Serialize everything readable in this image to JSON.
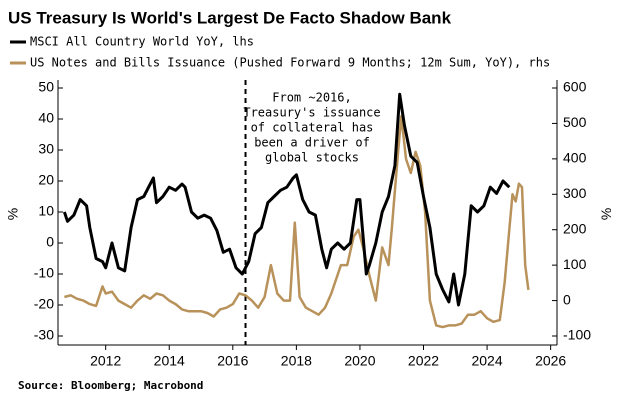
{
  "chart_data": {
    "type": "line",
    "title": "US Treasury Is World's Largest De Facto Shadow Bank",
    "y_label": "%",
    "y2_label": "%",
    "source": "Source: Bloomberg; Macrobond",
    "annotation": [
      "From ~2016,",
      "Treasury's issuance",
      "of collateral has",
      "been a driver of",
      "global stocks"
    ],
    "reference_line_x": 2016.4,
    "xlim": [
      2010.5,
      2026.2
    ],
    "xticks": [
      2012,
      2014,
      2016,
      2018,
      2020,
      2022,
      2024,
      2026
    ],
    "ylim": [
      -30,
      50
    ],
    "yticks": [
      -30,
      -20,
      -10,
      0,
      10,
      20,
      30,
      40,
      50
    ],
    "y2lim": [
      -100,
      600
    ],
    "y2ticks": [
      -100,
      0,
      100,
      200,
      300,
      400,
      500,
      600
    ],
    "series": [
      {
        "name": "MSCI All Country World YoY, lhs",
        "color": "#000000",
        "axis": "y",
        "x": [
          2010.7,
          2010.8,
          2011.0,
          2011.2,
          2011.4,
          2011.5,
          2011.7,
          2011.9,
          2012.0,
          2012.2,
          2012.4,
          2012.6,
          2012.8,
          2013.0,
          2013.2,
          2013.4,
          2013.5,
          2013.6,
          2013.8,
          2014.0,
          2014.2,
          2014.4,
          2014.5,
          2014.7,
          2014.9,
          2015.1,
          2015.3,
          2015.5,
          2015.7,
          2015.9,
          2016.1,
          2016.3,
          2016.5,
          2016.7,
          2016.9,
          2017.1,
          2017.3,
          2017.5,
          2017.7,
          2017.9,
          2018.0,
          2018.2,
          2018.4,
          2018.6,
          2018.8,
          2018.95,
          2019.1,
          2019.3,
          2019.5,
          2019.7,
          2019.9,
          2020.0,
          2020.2,
          2020.3,
          2020.5,
          2020.7,
          2020.9,
          2021.1,
          2021.25,
          2021.4,
          2021.6,
          2021.8,
          2022.0,
          2022.2,
          2022.4,
          2022.6,
          2022.8,
          2022.95,
          2023.1,
          2023.3,
          2023.5,
          2023.7,
          2023.9,
          2024.1,
          2024.3,
          2024.5,
          2024.7
        ],
        "values": [
          10,
          7,
          9,
          14,
          12,
          5,
          -5,
          -6,
          -8,
          0,
          -8,
          -9,
          5,
          14,
          15,
          19,
          21,
          13,
          15,
          18,
          17,
          19,
          18,
          10,
          8,
          9,
          8,
          4,
          -3,
          -2,
          -8,
          -10,
          -6,
          3,
          5,
          13,
          15,
          17,
          18,
          21,
          22,
          14,
          10,
          9,
          -2,
          -8,
          -2,
          0,
          -2,
          0,
          14,
          14,
          -10,
          -7,
          0,
          10,
          15,
          25,
          48,
          38,
          28,
          26,
          15,
          5,
          -10,
          -15,
          -19,
          -10,
          -20,
          -10,
          12,
          10,
          12,
          18,
          16,
          20,
          18
        ]
      },
      {
        "name": "US Notes and Bills Issuance (Pushed Forward 9 Months; 12m Sum, YoY), rhs",
        "color": "#b8925a",
        "axis": "y2",
        "x": [
          2010.7,
          2010.9,
          2011.1,
          2011.3,
          2011.5,
          2011.7,
          2011.9,
          2012.0,
          2012.2,
          2012.4,
          2012.6,
          2012.8,
          2013.0,
          2013.2,
          2013.4,
          2013.6,
          2013.8,
          2014.0,
          2014.2,
          2014.4,
          2014.6,
          2014.8,
          2015.0,
          2015.2,
          2015.4,
          2015.6,
          2015.8,
          2016.0,
          2016.2,
          2016.4,
          2016.6,
          2016.8,
          2017.0,
          2017.2,
          2017.4,
          2017.6,
          2017.8,
          2017.95,
          2018.1,
          2018.3,
          2018.5,
          2018.7,
          2018.9,
          2019.1,
          2019.4,
          2019.6,
          2019.8,
          2019.95,
          2020.1,
          2020.3,
          2020.5,
          2020.7,
          2020.9,
          2021.0,
          2021.2,
          2021.3,
          2021.45,
          2021.6,
          2021.75,
          2021.9,
          2022.05,
          2022.2,
          2022.4,
          2022.6,
          2022.8,
          2023.0,
          2023.2,
          2023.4,
          2023.6,
          2023.8,
          2024.0,
          2024.2,
          2024.4,
          2024.55,
          2024.7,
          2024.8,
          2024.9,
          2025.0,
          2025.1,
          2025.2,
          2025.3
        ],
        "values": [
          10,
          15,
          5,
          0,
          -10,
          -15,
          40,
          20,
          25,
          0,
          -10,
          -20,
          0,
          15,
          5,
          20,
          15,
          0,
          -10,
          -25,
          -30,
          -30,
          -30,
          -35,
          -45,
          -25,
          -20,
          -10,
          20,
          15,
          0,
          -20,
          10,
          100,
          20,
          0,
          0,
          220,
          10,
          -20,
          -30,
          -40,
          -20,
          20,
          100,
          100,
          180,
          200,
          150,
          70,
          0,
          150,
          100,
          200,
          420,
          520,
          400,
          360,
          420,
          380,
          250,
          0,
          -70,
          -75,
          -70,
          -70,
          -65,
          -40,
          -40,
          -30,
          -50,
          -60,
          -55,
          50,
          200,
          300,
          280,
          330,
          320,
          100,
          30
        ]
      }
    ]
  }
}
